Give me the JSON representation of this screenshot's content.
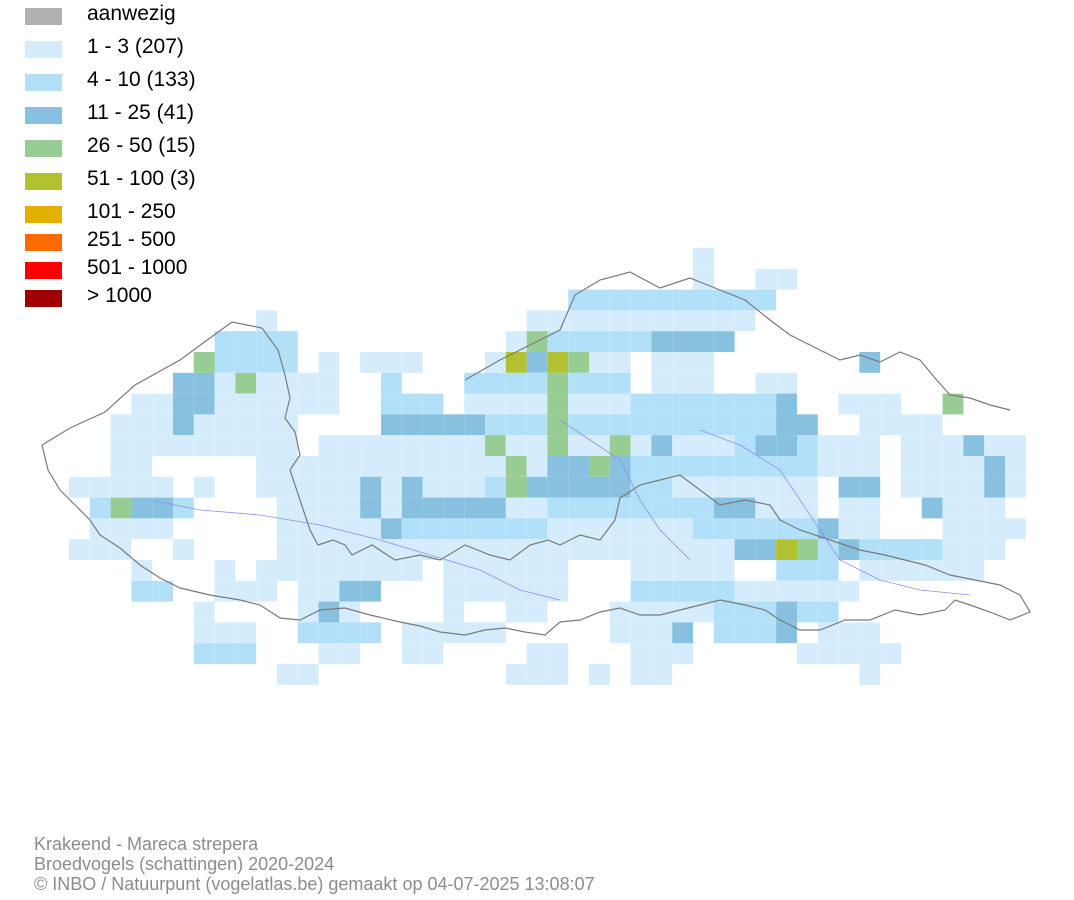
{
  "legend": {
    "items": [
      {
        "label": "aanwezig",
        "color": "#b0b0b0"
      },
      {
        "label": "1 - 3 (207)",
        "color": "#d4ecfb"
      },
      {
        "label": "4 - 10 (133)",
        "color": "#b3e0f9"
      },
      {
        "label": "11 - 25 (41)",
        "color": "#88c1e0"
      },
      {
        "label": "26 - 50 (15)",
        "color": "#97cc93"
      },
      {
        "label": "51 - 100 (3)",
        "color": "#b2c12f"
      },
      {
        "label": "101 - 250",
        "color": "#e4b000"
      },
      {
        "label": "251 - 500",
        "color": "#ff6a00"
      },
      {
        "label": "501 - 1000",
        "color": "#ff0000"
      },
      {
        "label": "> 1000",
        "color": "#a00000"
      }
    ]
  },
  "map": {
    "outline_color": "#7a7a7a",
    "river_color": "#8f8ff0"
  },
  "credits": {
    "line1": "Krakeend - Mareca strepera",
    "line2": "Broedvogels (schattingen) 2020-2024",
    "line3": "© INBO / Natuurpunt (vogelatlas.be) gemaakt op 04-07-2025 13:08:07"
  }
}
